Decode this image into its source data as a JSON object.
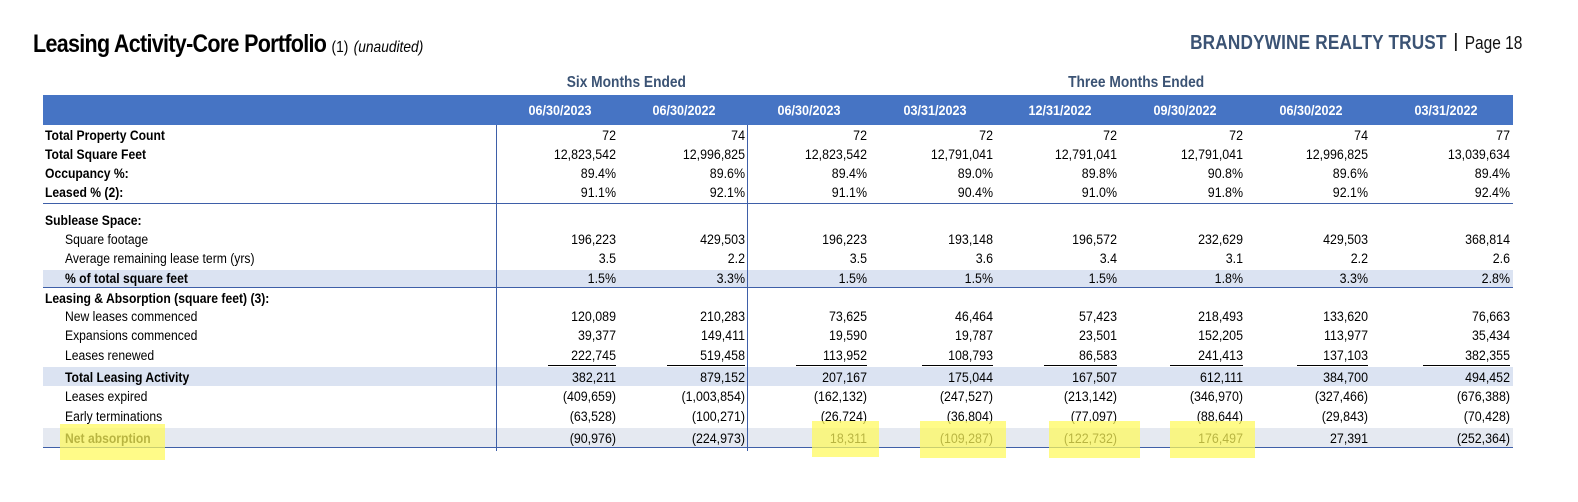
{
  "header": {
    "title": "Leasing Activity-Core Portfolio",
    "title_ref": "(1)",
    "title_note": "(unaudited)",
    "company": "BRANDYWINE REALTY TRUST",
    "page": "Page 18"
  },
  "groups": {
    "six_months": "Six Months Ended",
    "three_months": "Three Months Ended"
  },
  "columns": [
    "06/30/2023",
    "06/30/2022",
    "06/30/2023",
    "03/31/2023",
    "12/31/2022",
    "09/30/2022",
    "06/30/2022",
    "03/31/2022"
  ],
  "rows": [
    {
      "label": "Total Property Count",
      "values": [
        "72",
        "74",
        "72",
        "72",
        "72",
        "72",
        "74",
        "77"
      ]
    },
    {
      "label": "Total Square Feet",
      "values": [
        "12,823,542",
        "12,996,825",
        "12,823,542",
        "12,791,041",
        "12,791,041",
        "12,791,041",
        "12,996,825",
        "13,039,634"
      ]
    },
    {
      "label": "Occupancy %:",
      "values": [
        "89.4%",
        "89.6%",
        "89.4%",
        "89.0%",
        "89.8%",
        "90.8%",
        "89.6%",
        "89.4%"
      ]
    },
    {
      "label": "Leased % (2):",
      "values": [
        "91.1%",
        "92.1%",
        "91.1%",
        "90.4%",
        "91.0%",
        "91.8%",
        "92.1%",
        "92.4%"
      ]
    },
    {
      "label": "Sublease Space:",
      "values": [
        "",
        "",
        "",
        "",
        "",
        "",
        "",
        ""
      ]
    },
    {
      "label": "Square footage",
      "values": [
        "196,223",
        "429,503",
        "196,223",
        "193,148",
        "196,572",
        "232,629",
        "429,503",
        "368,814"
      ]
    },
    {
      "label": "Average remaining lease term (yrs)",
      "values": [
        "3.5",
        "2.2",
        "3.5",
        "3.6",
        "3.4",
        "3.1",
        "2.2",
        "2.6"
      ]
    },
    {
      "label": "% of total square feet",
      "values": [
        "1.5%",
        "3.3%",
        "1.5%",
        "1.5%",
        "1.5%",
        "1.8%",
        "3.3%",
        "2.8%"
      ]
    },
    {
      "label": "Leasing & Absorption (square feet) (3):",
      "values": [
        "",
        "",
        "",
        "",
        "",
        "",
        "",
        ""
      ]
    },
    {
      "label": "New leases commenced",
      "values": [
        "120,089",
        "210,283",
        "73,625",
        "46,464",
        "57,423",
        "218,493",
        "133,620",
        "76,663"
      ]
    },
    {
      "label": "Expansions commenced",
      "values": [
        "39,377",
        "149,411",
        "19,590",
        "19,787",
        "23,501",
        "152,205",
        "113,977",
        "35,434"
      ]
    },
    {
      "label": "Leases renewed",
      "values": [
        "222,745",
        "519,458",
        "113,952",
        "108,793",
        "86,583",
        "241,413",
        "137,103",
        "382,355"
      ]
    },
    {
      "label": "Total Leasing Activity",
      "values": [
        "382,211",
        "879,152",
        "207,167",
        "175,044",
        "167,507",
        "612,111",
        "384,700",
        "494,452"
      ]
    },
    {
      "label": "Leases expired",
      "values": [
        "(409,659)",
        "(1,003,854)",
        "(162,132)",
        "(247,527)",
        "(213,142)",
        "(346,970)",
        "(327,466)",
        "(676,388)"
      ]
    },
    {
      "label": "Early terminations",
      "values": [
        "(63,528)",
        "(100,271)",
        "(26,724)",
        "(36,804)",
        "(77,097)",
        "(88,644)",
        "(29,843)",
        "(70,428)"
      ]
    },
    {
      "label": "Net absorption",
      "values": [
        "(90,976)",
        "(224,973)",
        "18,311",
        "(109,287)",
        "(122,732)",
        "176,497",
        "27,391",
        "(252,364)"
      ]
    }
  ],
  "colors": {
    "header_blue": "#4674c4",
    "band_blue": "#dbe3f2",
    "brand_navy": "#3b5374",
    "highlight": "#fff95a"
  }
}
